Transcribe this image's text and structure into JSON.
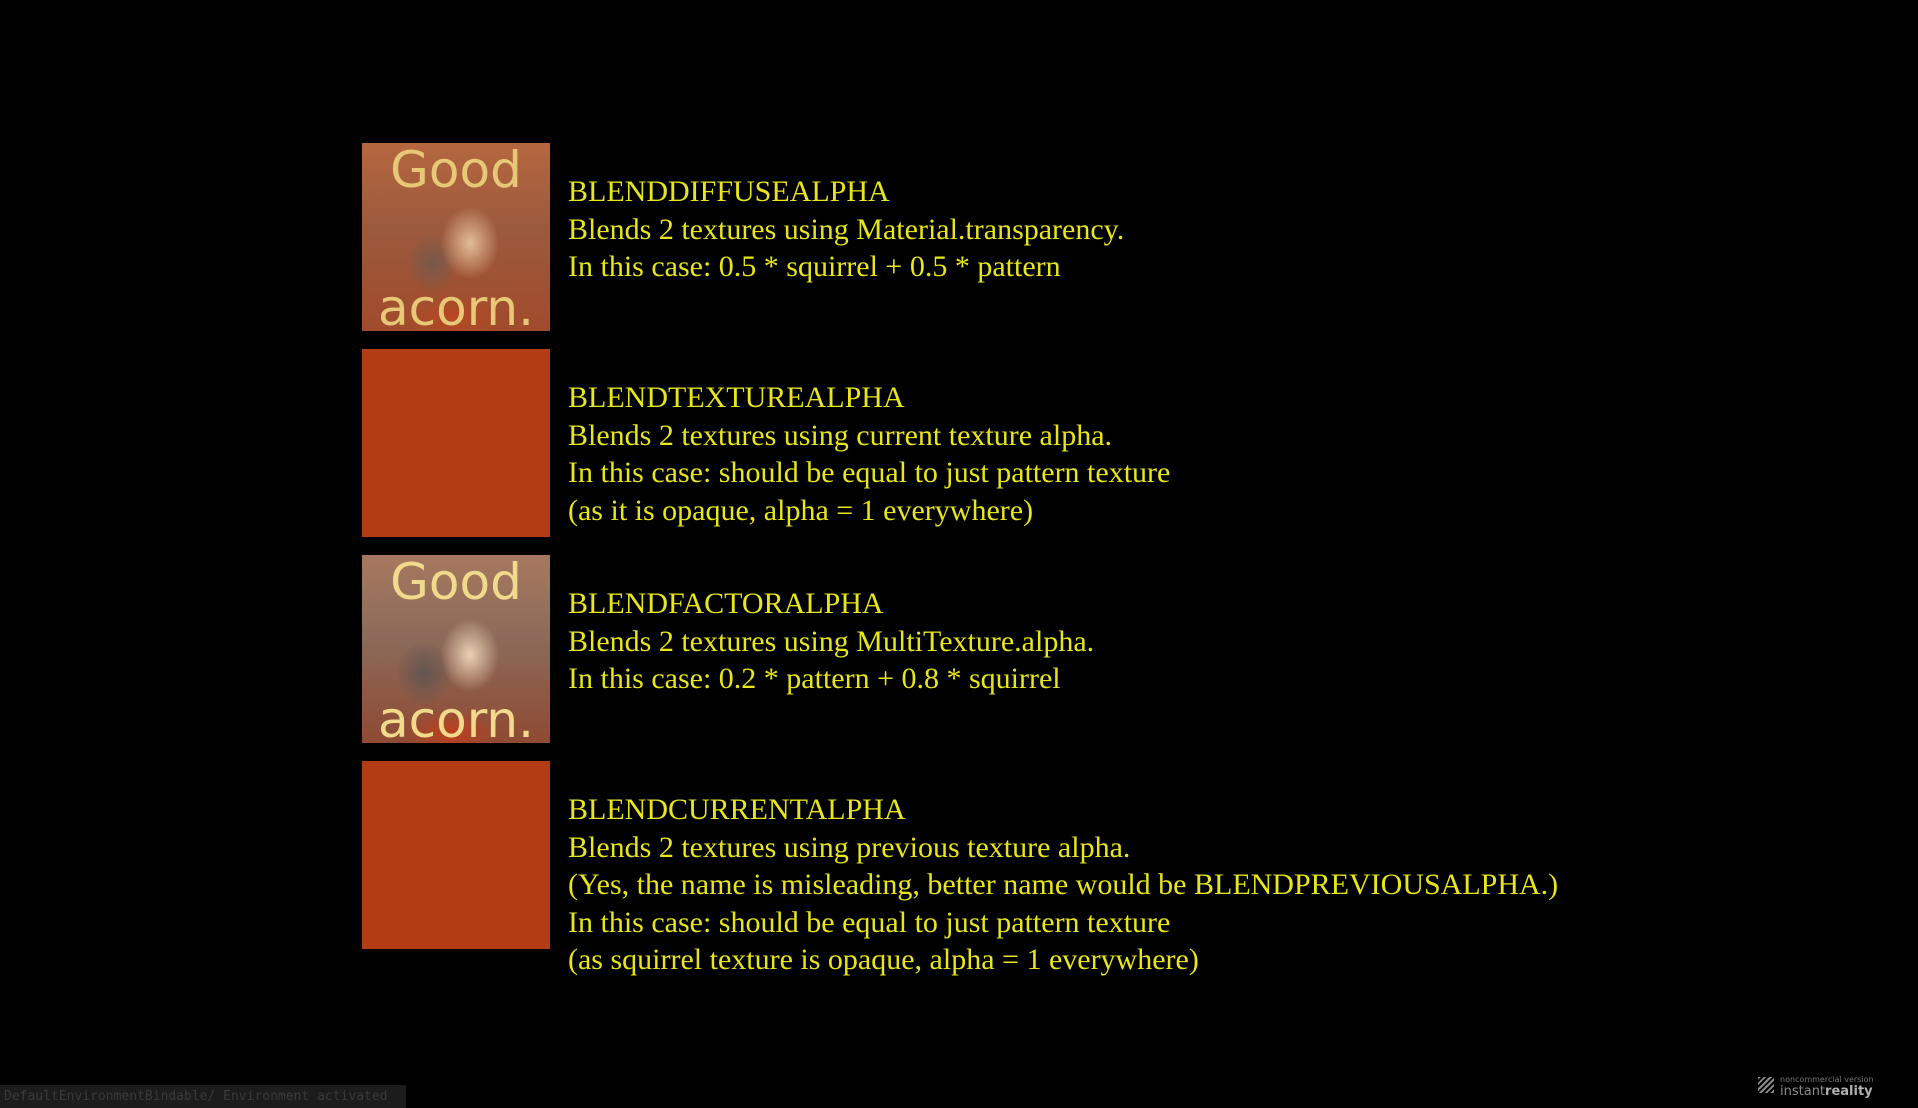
{
  "rows": [
    {
      "texture": "squirrel-photo",
      "texture_text_top": "Good",
      "texture_text_bottom": "acorn.",
      "lines": [
        "BLENDDIFFUSEALPHA",
        "Blends 2 textures using Material.transparency.",
        "In this case: 0.5 * squirrel + 0.5 * pattern"
      ]
    },
    {
      "texture": "solid-pattern",
      "texture_color": "#b33c14",
      "lines": [
        "BLENDTEXTUREALPHA",
        "Blends 2 textures using current texture alpha.",
        "In this case: should be equal to just pattern texture",
        "(as it is opaque, alpha = 1 everywhere)"
      ]
    },
    {
      "texture": "squirrel-photo",
      "texture_text_top": "Good",
      "texture_text_bottom": "acorn.",
      "lines": [
        "BLENDFACTORALPHA",
        "Blends 2 textures using MultiTexture.alpha.",
        "In this case: 0.2 * pattern + 0.8 * squirrel"
      ]
    },
    {
      "texture": "solid-pattern",
      "texture_color": "#b33c14",
      "lines": [
        "BLENDCURRENTALPHA",
        "Blends 2 textures using previous texture alpha.",
        "(Yes, the name is misleading, better name would be BLENDPREVIOUSALPHA.)",
        "In this case: should be equal to just pattern texture",
        "(as squirrel texture is opaque, alpha = 1 everywhere)"
      ]
    }
  ],
  "status_bar": {
    "text": "DefaultEnvironmentBindable/ Environment activated"
  },
  "brand": {
    "icon": "instantreality-logo-icon",
    "subtitle": "noncommercial version",
    "name_prefix": "instant",
    "name_suffix": "reality"
  },
  "colors": {
    "background": "#000000",
    "caption_text": "#e8e61a",
    "pattern": "#b33c14"
  }
}
